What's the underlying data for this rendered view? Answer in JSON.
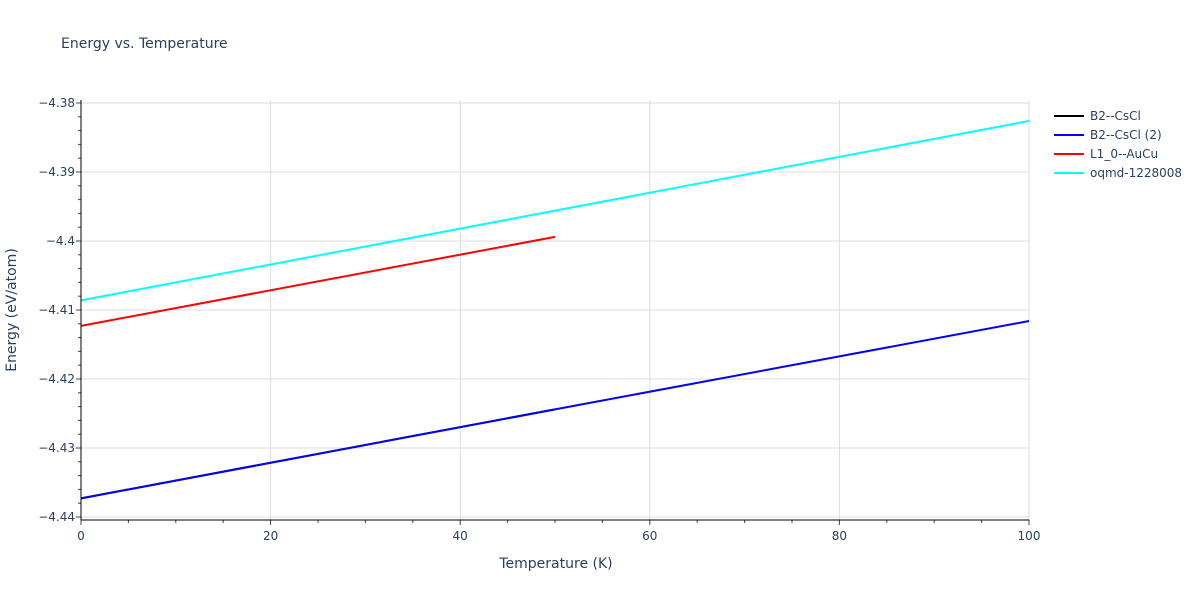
{
  "chart_data": {
    "type": "line",
    "title": "Energy vs. Temperature",
    "xlabel": "Temperature (K)",
    "ylabel": "Energy (eV/atom)",
    "xlim": [
      0,
      100
    ],
    "ylim": [
      -4.44,
      -4.38
    ],
    "x_ticks": [
      0,
      20,
      40,
      60,
      80,
      100
    ],
    "y_ticks": [
      -4.38,
      -4.39,
      -4.4,
      -4.41,
      -4.42,
      -4.43,
      -4.44
    ],
    "grid": true,
    "legend_position": "right",
    "series": [
      {
        "name": "B2--CsCl",
        "color": "#000000",
        "x": [
          0,
          50
        ],
        "y": [
          -4.4373,
          -4.4244
        ]
      },
      {
        "name": "B2--CsCl (2)",
        "color": "#0000ff",
        "x": [
          0,
          50,
          100
        ],
        "y": [
          -4.4373,
          -4.4244,
          -4.4116
        ]
      },
      {
        "name": "L1_0--AuCu",
        "color": "#ff0000",
        "x": [
          0,
          50
        ],
        "y": [
          -4.4123,
          -4.3994
        ]
      },
      {
        "name": "oqmd-1228008",
        "color": "#00ffff",
        "x": [
          0,
          50,
          100
        ],
        "y": [
          -4.4086,
          -4.3956,
          -4.3826
        ]
      }
    ]
  },
  "labels": {
    "title": "Energy vs. Temperature",
    "xlabel": "Temperature (K)",
    "ylabel": "Energy (eV/atom)",
    "x_ticks": [
      "0",
      "20",
      "40",
      "60",
      "80",
      "100"
    ],
    "y_ticks": [
      "−4.38",
      "−4.39",
      "−4.4",
      "−4.41",
      "−4.42",
      "−4.43",
      "−4.44"
    ]
  },
  "legend": [
    {
      "label": "B2--CsCl",
      "color": "#000000"
    },
    {
      "label": "B2--CsCl (2)",
      "color": "#0000ff"
    },
    {
      "label": "L1_0--AuCu",
      "color": "#ff0000"
    },
    {
      "label": "oqmd-1228008",
      "color": "#00ffff"
    }
  ]
}
